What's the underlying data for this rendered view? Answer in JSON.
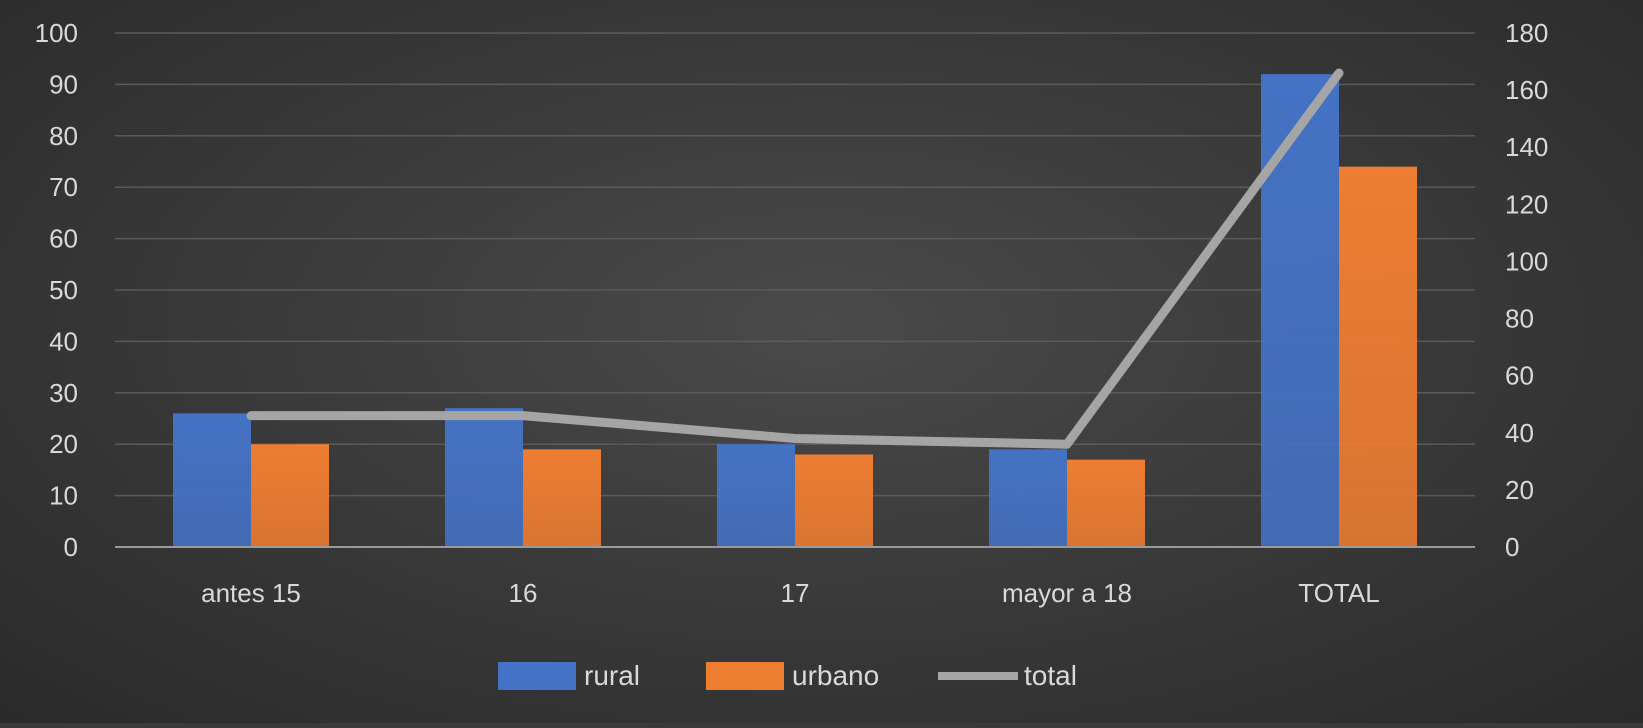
{
  "chart_data": {
    "type": "bar",
    "categories": [
      "antes 15",
      "16",
      "17",
      "mayor a 18",
      "TOTAL"
    ],
    "series": [
      {
        "name": "rural",
        "type": "bar",
        "axis": "left",
        "color": "#4472c4",
        "values": [
          26,
          27,
          20,
          19,
          92
        ]
      },
      {
        "name": "urbano",
        "type": "bar",
        "axis": "left",
        "color": "#ed7d31",
        "values": [
          20,
          19,
          18,
          17,
          74
        ]
      },
      {
        "name": "total",
        "type": "line",
        "axis": "right",
        "color": "#a5a5a5",
        "values": [
          46,
          46,
          38,
          36,
          166
        ]
      }
    ],
    "ylim": [
      0,
      100
    ],
    "y_ticks": [
      0,
      10,
      20,
      30,
      40,
      50,
      60,
      70,
      80,
      90,
      100
    ],
    "y2lim": [
      0,
      180
    ],
    "y2_ticks": [
      0,
      20,
      40,
      60,
      80,
      100,
      120,
      140,
      160,
      180
    ],
    "grid": true,
    "legend_position": "bottom",
    "background": "#3b3b3b",
    "text_color": "#d9d9d9"
  }
}
